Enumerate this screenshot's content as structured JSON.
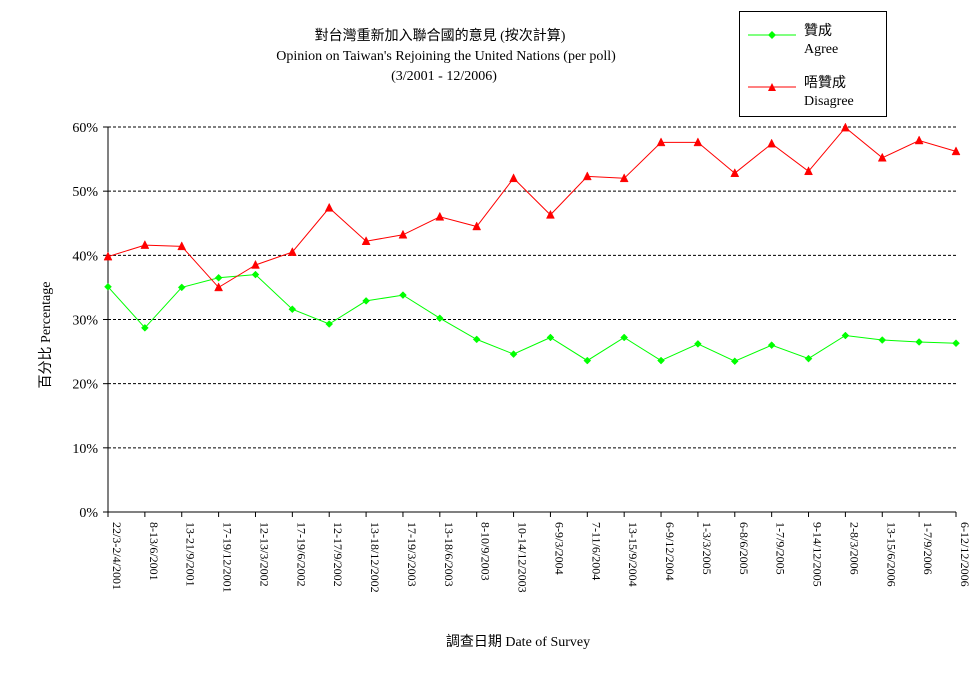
{
  "chart_data": {
    "type": "line",
    "title": "對台灣重新加入聯合國的意見 (按次計算)",
    "subtitle": "Opinion on Taiwan's Rejoining the United Nations (per poll)",
    "subtitle2": "(3/2001 - 12/2006)",
    "xlabel": "調查日期 Date of Survey",
    "ylabel": "百分比 Percentage",
    "ylim": [
      0,
      60
    ],
    "yticks": [
      "0%",
      "10%",
      "20%",
      "30%",
      "40%",
      "50%",
      "60%"
    ],
    "grid": "horizontal dashed",
    "legend_position": "top-right",
    "categories": [
      "22/3-2/4/2001",
      "8-13/6/2001",
      "13-21/9/2001",
      "17-19/12/2001",
      "12-13/3/2002",
      "17-19/6/2002",
      "12-17/9/2002",
      "13-18/12/2002",
      "17-19/3/2003",
      "13-18/6/2003",
      "8-10/9/2003",
      "10-14/12/2003",
      "6-9/3/2004",
      "7-11/6/2004",
      "13-15/9/2004",
      "6-9/12/2004",
      "1-3/3/2005",
      "6-8/6/2005",
      "1-7/9/2005",
      "9-14/12/2005",
      "2-8/3/2006",
      "13-15/6/2006",
      "1-7/9/2006",
      "6-12/12/2006"
    ],
    "series": [
      {
        "name": "贊成",
        "name_en": "Agree",
        "color": "#00ff00",
        "marker": "diamond",
        "values": [
          35.1,
          28.7,
          35.0,
          36.5,
          37.0,
          31.6,
          29.3,
          32.9,
          33.8,
          30.2,
          26.9,
          24.6,
          27.2,
          23.6,
          27.2,
          23.6,
          26.2,
          23.5,
          26.0,
          23.9,
          27.5,
          26.8,
          26.5,
          26.3
        ]
      },
      {
        "name": "唔贊成",
        "name_en": "Disagree",
        "color": "#ff0000",
        "marker": "triangle",
        "values": [
          39.8,
          41.6,
          41.4,
          35.0,
          38.5,
          40.5,
          47.4,
          42.2,
          43.2,
          46.0,
          44.5,
          52.0,
          46.3,
          52.3,
          52.0,
          57.6,
          57.6,
          52.8,
          57.4,
          53.1,
          59.9,
          55.2,
          57.9,
          56.2
        ]
      }
    ]
  }
}
